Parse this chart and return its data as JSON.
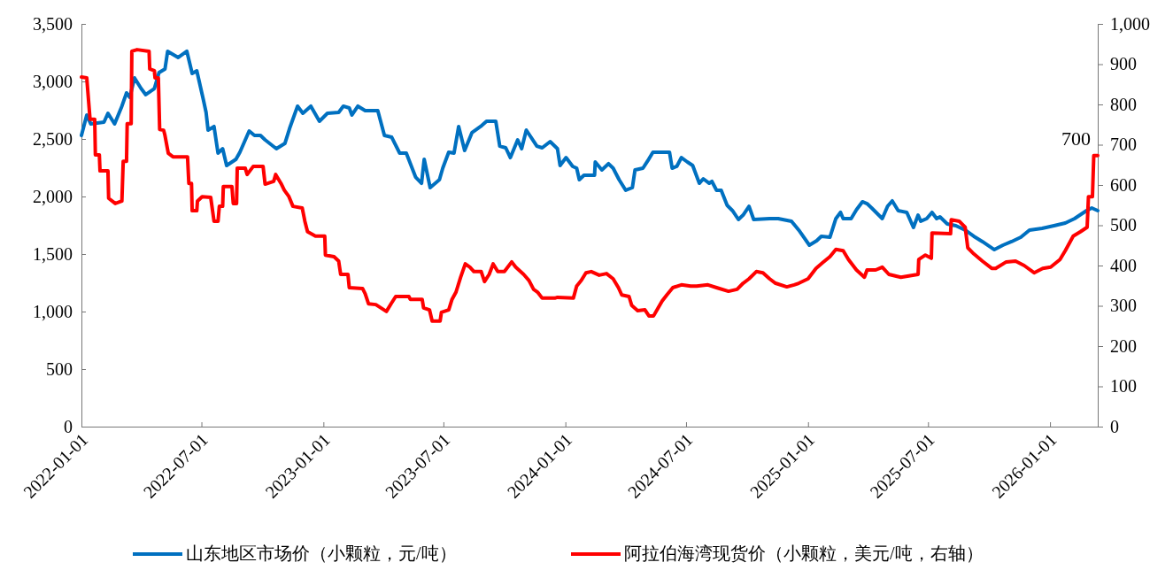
{
  "chart_data": {
    "type": "line",
    "xlim": [
      "2022-01-01",
      "2026-03-14"
    ],
    "xticks": [
      "2022-01-01",
      "2022-07-01",
      "2023-01-01",
      "2023-07-01",
      "2024-01-01",
      "2024-07-01",
      "2025-01-01",
      "2025-07-01",
      "2026-01-01"
    ],
    "ylim": [
      0,
      3500
    ],
    "yticks": [
      0,
      500,
      {
        "value": 1000,
        "label": "1,000"
      },
      {
        "value": 1500,
        "label": "1,500"
      },
      {
        "value": 2000,
        "label": "2,000"
      },
      {
        "value": 2500,
        "label": "2,500"
      },
      {
        "value": 3000,
        "label": "3,000"
      },
      {
        "value": 3500,
        "label": "3,500"
      }
    ],
    "y2lim": [
      0,
      1000
    ],
    "y2ticks": [
      0,
      100,
      200,
      300,
      400,
      500,
      600,
      700,
      800,
      900,
      {
        "value": 1000,
        "label": "1,000"
      }
    ],
    "legend": "bottom",
    "annotations": [
      "700"
    ],
    "series": [
      {
        "name": "山东地区市场价（小颗粒，元/吨）",
        "color": "#0070c0",
        "x": [
          "2022-01-01",
          "2022-01-09",
          "2022-01-15",
          "2022-02-04",
          "2022-02-10",
          "2022-02-20",
          "2022-03-03",
          "2022-03-10",
          "2022-03-15",
          "2022-03-22",
          "2022-04-01",
          "2022-04-08",
          "2022-04-21",
          "2022-04-28",
          "2022-05-07",
          "2022-05-11",
          "2022-05-27",
          "2022-06-09",
          "2022-06-17",
          "2022-06-24",
          "2022-07-04",
          "2022-07-08",
          "2022-07-11",
          "2022-07-20",
          "2022-07-26",
          "2022-08-02",
          "2022-08-08",
          "2022-08-22",
          "2022-08-28",
          "2022-09-04",
          "2022-09-11",
          "2022-09-19",
          "2022-09-28",
          "2022-10-05",
          "2022-10-22",
          "2022-11-04",
          "2022-11-11",
          "2022-11-23",
          "2022-12-01",
          "2022-12-13",
          "2022-12-26",
          "2023-01-07",
          "2023-01-24",
          "2023-01-31",
          "2023-02-09",
          "2023-02-13",
          "2023-02-22",
          "2023-03-05",
          "2023-03-24",
          "2023-04-03",
          "2023-04-14",
          "2023-04-26",
          "2023-05-06",
          "2023-05-20",
          "2023-05-29",
          "2023-06-02",
          "2023-06-11",
          "2023-06-25",
          "2023-06-30",
          "2023-07-09",
          "2023-07-17",
          "2023-07-24",
          "2023-08-02",
          "2023-08-13",
          "2023-08-26",
          "2023-09-04",
          "2023-09-18",
          "2023-09-24",
          "2023-10-03",
          "2023-10-10",
          "2023-10-21",
          "2023-10-27",
          "2023-11-03",
          "2023-11-19",
          "2023-11-27",
          "2023-12-09",
          "2023-12-20",
          "2023-12-24",
          "2024-01-02",
          "2024-01-12",
          "2024-01-18",
          "2024-01-22",
          "2024-01-29",
          "2024-02-14",
          "2024-02-15",
          "2024-02-25",
          "2024-03-06",
          "2024-03-13",
          "2024-03-22",
          "2024-04-01",
          "2024-04-11",
          "2024-04-15",
          "2024-04-27",
          "2024-05-04",
          "2024-05-12",
          "2024-06-01",
          "2024-06-06",
          "2024-06-10",
          "2024-06-17",
          "2024-06-24",
          "2024-07-03",
          "2024-07-11",
          "2024-07-21",
          "2024-07-27",
          "2024-08-05",
          "2024-08-09",
          "2024-08-16",
          "2024-08-23",
          "2024-09-01",
          "2024-09-09",
          "2024-09-18",
          "2024-09-25",
          "2024-10-04",
          "2024-10-11",
          "2024-11-04",
          "2024-11-17",
          "2024-12-07",
          "2024-12-18",
          "2025-01-03",
          "2025-01-14",
          "2025-01-21",
          "2025-02-03",
          "2025-02-12",
          "2025-02-19",
          "2025-02-23",
          "2025-03-07",
          "2025-03-15",
          "2025-03-24",
          "2025-03-31",
          "2025-04-07",
          "2025-04-23",
          "2025-05-01",
          "2025-05-08",
          "2025-05-17",
          "2025-05-30",
          "2025-06-09",
          "2025-06-16",
          "2025-06-20",
          "2025-06-29",
          "2025-07-07",
          "2025-07-14",
          "2025-07-19",
          "2025-07-30",
          "2025-08-12",
          "2025-08-26",
          "2025-09-08",
          "2025-09-21",
          "2025-10-09",
          "2025-10-22",
          "2025-11-04",
          "2025-11-18",
          "2025-12-01",
          "2025-12-20",
          "2026-01-07",
          "2026-01-24",
          "2026-02-07",
          "2026-02-25",
          "2026-03-05",
          "2026-03-14"
        ],
        "values": [
          2531,
          2708,
          2631,
          2646,
          2723,
          2631,
          2785,
          2900,
          2862,
          3031,
          2938,
          2885,
          2938,
          3077,
          3108,
          3262,
          3208,
          3262,
          3069,
          3092,
          2838,
          2731,
          2577,
          2608,
          2377,
          2415,
          2269,
          2323,
          2385,
          2477,
          2569,
          2531,
          2531,
          2492,
          2415,
          2462,
          2592,
          2785,
          2723,
          2785,
          2654,
          2723,
          2731,
          2785,
          2769,
          2708,
          2785,
          2746,
          2746,
          2531,
          2515,
          2377,
          2377,
          2169,
          2115,
          2323,
          2077,
          2146,
          2246,
          2385,
          2377,
          2608,
          2400,
          2554,
          2608,
          2654,
          2654,
          2438,
          2423,
          2338,
          2492,
          2415,
          2577,
          2438,
          2423,
          2477,
          2415,
          2269,
          2338,
          2262,
          2246,
          2146,
          2185,
          2185,
          2300,
          2231,
          2285,
          2246,
          2146,
          2054,
          2077,
          2231,
          2246,
          2308,
          2385,
          2385,
          2385,
          2246,
          2262,
          2338,
          2300,
          2269,
          2115,
          2154,
          2115,
          2131,
          2054,
          2054,
          1923,
          1877,
          1800,
          1838,
          1915,
          1800,
          1808,
          1808,
          1785,
          1708,
          1577,
          1615,
          1654,
          1646,
          1808,
          1862,
          1808,
          1808,
          1885,
          1954,
          1938,
          1900,
          1808,
          1915,
          1962,
          1877,
          1862,
          1731,
          1838,
          1785,
          1808,
          1862,
          1808,
          1823,
          1762,
          1746,
          1708,
          1654,
          1608,
          1538,
          1577,
          1608,
          1646,
          1708,
          1723,
          1746,
          1769,
          1808,
          1877,
          1900,
          1877
        ]
      },
      {
        "name": "阿拉伯海湾现货价（小颗粒，美元/吨，右轴）",
        "color": "#ff0000",
        "axis": "y2",
        "x": [
          "2022-01-01",
          "2022-01-09",
          "2022-01-14",
          "2022-01-21",
          "2022-01-22",
          "2022-01-28",
          "2022-01-29",
          "2022-02-10",
          "2022-02-11",
          "2022-02-21",
          "2022-03-03",
          "2022-03-05",
          "2022-03-10",
          "2022-03-11",
          "2022-03-17",
          "2022-03-18",
          "2022-03-26",
          "2022-04-13",
          "2022-04-14",
          "2022-04-21",
          "2022-04-22",
          "2022-04-27",
          "2022-04-29",
          "2022-05-05",
          "2022-05-07",
          "2022-05-12",
          "2022-05-19",
          "2022-06-10",
          "2022-06-12",
          "2022-06-16",
          "2022-06-17",
          "2022-06-24",
          "2022-06-25",
          "2022-07-02",
          "2022-07-15",
          "2022-07-20",
          "2022-07-26",
          "2022-07-28",
          "2022-08-02",
          "2022-08-03",
          "2022-08-16",
          "2022-08-18",
          "2022-08-23",
          "2022-08-24",
          "2022-09-05",
          "2022-09-08",
          "2022-09-17",
          "2022-10-02",
          "2022-10-05",
          "2022-10-18",
          "2022-10-21",
          "2022-10-29",
          "2022-11-03",
          "2022-11-10",
          "2022-11-16",
          "2022-11-30",
          "2022-12-04",
          "2022-12-08",
          "2022-12-20",
          "2023-01-03",
          "2023-01-04",
          "2023-01-17",
          "2023-01-24",
          "2023-01-27",
          "2023-02-07",
          "2023-02-09",
          "2023-03-01",
          "2023-03-05",
          "2023-03-10",
          "2023-03-21",
          "2023-04-06",
          "2023-04-13",
          "2023-04-20",
          "2023-05-10",
          "2023-05-12",
          "2023-05-30",
          "2023-06-01",
          "2023-06-10",
          "2023-06-14",
          "2023-06-26",
          "2023-06-28",
          "2023-07-09",
          "2023-07-14",
          "2023-07-20",
          "2023-07-27",
          "2023-08-03",
          "2023-08-10",
          "2023-08-16",
          "2023-08-27",
          "2023-09-01",
          "2023-09-08",
          "2023-09-14",
          "2023-09-21",
          "2023-10-01",
          "2023-10-12",
          "2023-10-18",
          "2023-10-30",
          "2023-11-07",
          "2023-11-14",
          "2023-11-20",
          "2023-11-27",
          "2023-12-16",
          "2023-12-20",
          "2024-01-13",
          "2024-01-18",
          "2024-01-25",
          "2024-02-01",
          "2024-02-09",
          "2024-02-21",
          "2024-03-03",
          "2024-03-13",
          "2024-03-21",
          "2024-03-26",
          "2024-04-06",
          "2024-04-10",
          "2024-04-19",
          "2024-04-30",
          "2024-05-06",
          "2024-05-13",
          "2024-05-20",
          "2024-05-26",
          "2024-06-02",
          "2024-06-11",
          "2024-06-24",
          "2024-07-08",
          "2024-07-17",
          "2024-08-03",
          "2024-08-16",
          "2024-09-03",
          "2024-09-16",
          "2024-09-25",
          "2024-10-04",
          "2024-10-15",
          "2024-10-25",
          "2024-11-04",
          "2024-11-13",
          "2024-11-30",
          "2024-12-11",
          "2024-12-18",
          "2025-01-01",
          "2025-01-13",
          "2025-01-23",
          "2025-02-03",
          "2025-02-12",
          "2025-02-23",
          "2025-03-03",
          "2025-03-15",
          "2025-03-27",
          "2025-03-31",
          "2025-04-13",
          "2025-04-23",
          "2025-05-03",
          "2025-05-21",
          "2025-06-16",
          "2025-06-17",
          "2025-06-27",
          "2025-07-06",
          "2025-07-07",
          "2025-08-04",
          "2025-08-05",
          "2025-08-17",
          "2025-08-26",
          "2025-08-30",
          "2025-09-08",
          "2025-09-21",
          "2025-10-05",
          "2025-10-11",
          "2025-10-27",
          "2025-11-10",
          "2025-11-23",
          "2025-12-08",
          "2025-12-21",
          "2026-01-02",
          "2026-01-16",
          "2026-01-24",
          "2026-02-05",
          "2026-02-16",
          "2026-02-26",
          "2026-02-28",
          "2026-03-06",
          "2026-03-08",
          "2026-03-14"
        ],
        "values": [
          868,
          866,
          763,
          763,
          675,
          675,
          635,
          635,
          567,
          554,
          560,
          659,
          659,
          752,
          752,
          932,
          936,
          932,
          888,
          884,
          866,
          866,
          738,
          736,
          723,
          679,
          670,
          670,
          604,
          604,
          536,
          536,
          560,
          571,
          569,
          510,
          510,
          547,
          547,
          596,
          596,
          554,
          554,
          642,
          642,
          626,
          646,
          646,
          602,
          609,
          626,
          604,
          587,
          571,
          547,
          543,
          510,
          484,
          473,
          473,
          426,
          422,
          411,
          378,
          378,
          345,
          343,
          330,
          305,
          303,
          286,
          305,
          323,
          323,
          316,
          316,
          295,
          290,
          262,
          262,
          284,
          290,
          316,
          334,
          371,
          404,
          396,
          385,
          385,
          360,
          378,
          404,
          385,
          385,
          409,
          396,
          378,
          363,
          341,
          334,
          319,
          319,
          321,
          319,
          349,
          363,
          382,
          385,
          376,
          380,
          367,
          345,
          327,
          323,
          301,
          288,
          290,
          275,
          275,
          295,
          312,
          327,
          345,
          352,
          349,
          349,
          352,
          345,
          336,
          341,
          356,
          367,
          385,
          382,
          367,
          356,
          347,
          352,
          356,
          367,
          393,
          407,
          422,
          440,
          437,
          415,
          389,
          371,
          389,
          389,
          396,
          378,
          371,
          378,
          415,
          426,
          418,
          481,
          479,
          514,
          510,
          495,
          444,
          429,
          411,
          393,
          393,
          409,
          411,
          400,
          382,
          393,
          396,
          415,
          437,
          473,
          484,
          495,
          571,
          571,
          673,
          673
        ]
      }
    ]
  }
}
